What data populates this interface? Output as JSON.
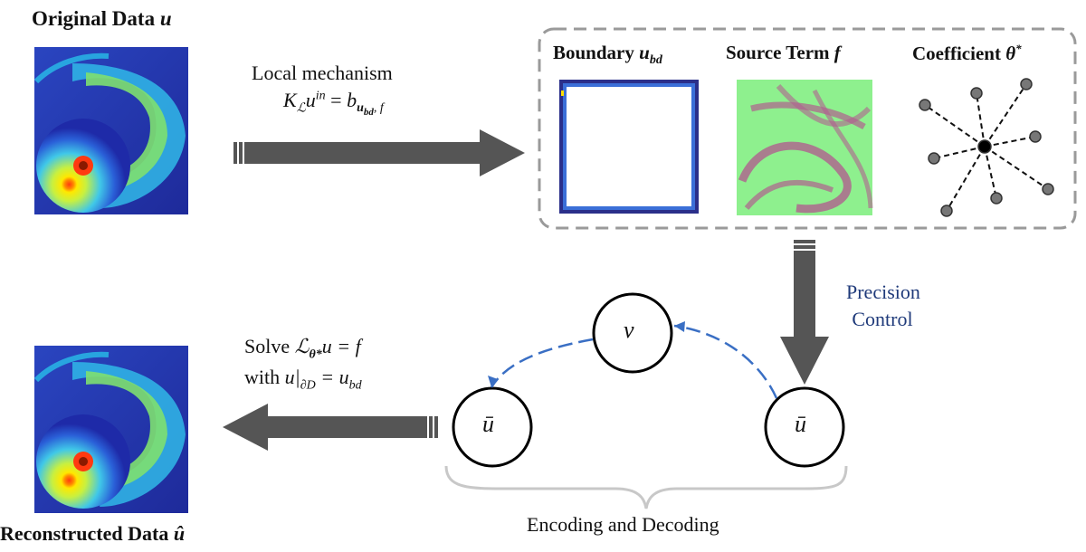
{
  "labels": {
    "original_title": "Original Data",
    "original_var": "u",
    "reconstructed_title": "Reconstructed Data",
    "reconstructed_var": "û",
    "local_mechanism": "Local mechanism",
    "local_equation_lhs": "K",
    "local_equation_sub": "ℒ",
    "local_equation_u": "u",
    "local_equation_sup": "in",
    "local_equation_eq": "=",
    "local_equation_b": "b",
    "local_equation_bsub": "u",
    "local_equation_bsub2": "bd",
    "local_equation_bsub3": ", f",
    "boundary_title": "Boundary",
    "boundary_var": "u",
    "boundary_sub": "bd",
    "source_title": "Source Term",
    "source_var": "f",
    "coeff_title": "Coefficient",
    "coeff_var": "θ",
    "coeff_sup": "*",
    "precision_line1": "Precision",
    "precision_line2": "Control",
    "solve_line1_a": "Solve",
    "solve_line1_L": "ℒ",
    "solve_line1_sub": "θ*",
    "solve_line1_rest": "u = f",
    "solve_line2_a": "with",
    "solve_line2_u": "u|",
    "solve_line2_sub": "∂D",
    "solve_line2_eq": "= u",
    "solve_line2_sub2": "bd",
    "node_v": "v",
    "node_ubar_left": "ū",
    "node_ubar_right": "ū",
    "encoding_label": "Encoding and Decoding"
  },
  "colors": {
    "arrow_gray": "#555555",
    "dashed_border": "#9a9a9a",
    "blue_dashed": "#3a6fc4",
    "precision_text": "#1f3a7a",
    "brace": "#c8c8c8",
    "source_green": "#8ef08e",
    "source_pink": "#b0608f",
    "boundary_frame": "#2b2f8a"
  }
}
